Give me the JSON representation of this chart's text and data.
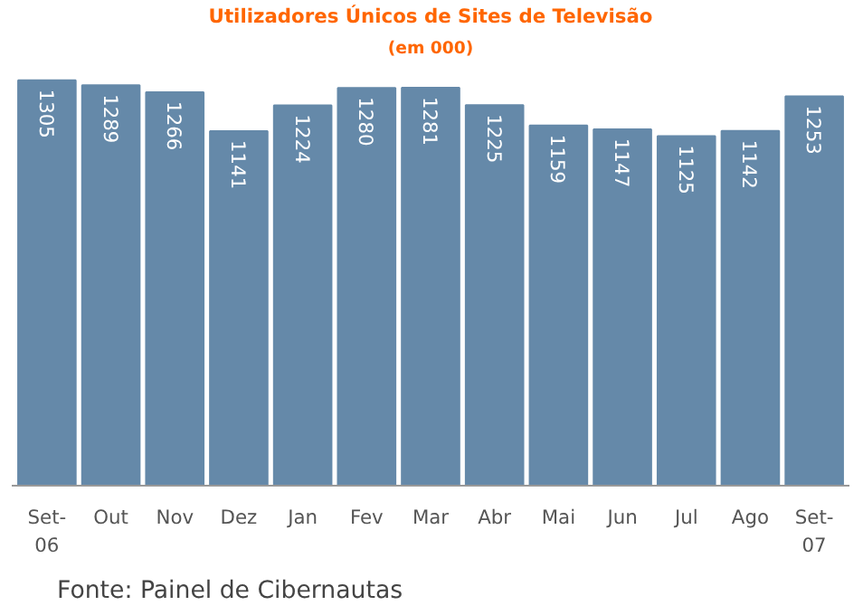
{
  "chart_data": {
    "type": "bar",
    "title": "Utilizadores Únicos de Sites de Televisão",
    "subtitle": "(em 000)",
    "categories": [
      "Set-06",
      "Out",
      "Nov",
      "Dez",
      "Jan",
      "Fev",
      "Mar",
      "Abr",
      "Mai",
      "Jun",
      "Jul",
      "Ago",
      "Set-07"
    ],
    "values": [
      1305,
      1289,
      1266,
      1141,
      1224,
      1280,
      1281,
      1225,
      1159,
      1147,
      1125,
      1142,
      1253
    ],
    "color": "#6589a9",
    "data_labels": true,
    "tick_labels": "x",
    "annotations": [
      "Fonte: Painel de Cibernautas"
    ]
  }
}
